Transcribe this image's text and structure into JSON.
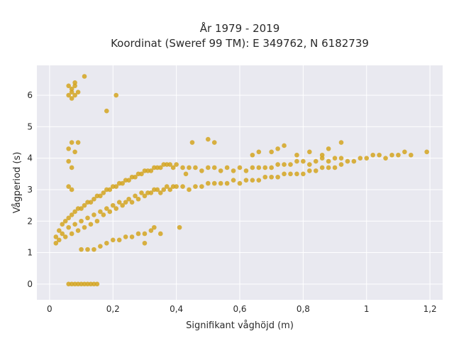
{
  "chart_data": {
    "type": "scatter",
    "title_lines": [
      "År 1979 - 2019",
      "Koordinat (Sweref 99 TM): E 349762, N 6182739"
    ],
    "xlabel": "Signifikant våghöjd (m)",
    "ylabel": "Vågperiod (s)",
    "xlim": [
      -0.04,
      1.24
    ],
    "ylim": [
      -0.5,
      6.95
    ],
    "x_ticks": [
      0,
      0.2,
      0.4,
      0.6,
      0.8,
      1,
      1.2
    ],
    "x_tick_labels": [
      "0",
      "0,2",
      "0,4",
      "0,6",
      "0,8",
      "1",
      "1,2"
    ],
    "y_ticks": [
      0,
      1,
      2,
      3,
      4,
      5,
      6
    ],
    "y_tick_labels": [
      "0",
      "1",
      "2",
      "3",
      "4",
      "5",
      "6"
    ],
    "grid": true,
    "colors": {
      "marker": "#d4a520",
      "plot_bg": "#e9e9f0",
      "grid": "#ffffff"
    },
    "series": [
      {
        "values_note_free": true,
        "points": [
          [
            0.02,
            1.3
          ],
          [
            0.02,
            1.5
          ],
          [
            0.03,
            1.7
          ],
          [
            0.03,
            1.4
          ],
          [
            0.04,
            1.6
          ],
          [
            0.04,
            1.9
          ],
          [
            0.05,
            2.0
          ],
          [
            0.05,
            1.5
          ],
          [
            0.06,
            2.1
          ],
          [
            0.06,
            1.8
          ],
          [
            0.07,
            2.2
          ],
          [
            0.07,
            1.6
          ],
          [
            0.08,
            2.3
          ],
          [
            0.08,
            1.9
          ],
          [
            0.09,
            2.4
          ],
          [
            0.09,
            1.7
          ],
          [
            0.1,
            2.4
          ],
          [
            0.1,
            2.0
          ],
          [
            0.11,
            2.5
          ],
          [
            0.11,
            1.8
          ],
          [
            0.12,
            2.6
          ],
          [
            0.12,
            2.1
          ],
          [
            0.13,
            2.6
          ],
          [
            0.13,
            1.9
          ],
          [
            0.14,
            2.7
          ],
          [
            0.14,
            2.2
          ],
          [
            0.15,
            2.8
          ],
          [
            0.15,
            2.0
          ],
          [
            0.16,
            2.8
          ],
          [
            0.16,
            2.3
          ],
          [
            0.17,
            2.9
          ],
          [
            0.17,
            2.2
          ],
          [
            0.18,
            3.0
          ],
          [
            0.18,
            2.4
          ],
          [
            0.19,
            3.0
          ],
          [
            0.19,
            2.3
          ],
          [
            0.2,
            3.1
          ],
          [
            0.2,
            2.5
          ],
          [
            0.21,
            3.1
          ],
          [
            0.21,
            2.4
          ],
          [
            0.22,
            3.2
          ],
          [
            0.22,
            2.6
          ],
          [
            0.23,
            3.2
          ],
          [
            0.23,
            2.5
          ],
          [
            0.24,
            3.3
          ],
          [
            0.24,
            2.6
          ],
          [
            0.25,
            3.3
          ],
          [
            0.25,
            2.7
          ],
          [
            0.26,
            3.4
          ],
          [
            0.26,
            2.6
          ],
          [
            0.27,
            3.4
          ],
          [
            0.27,
            2.8
          ],
          [
            0.28,
            3.5
          ],
          [
            0.28,
            2.7
          ],
          [
            0.29,
            3.5
          ],
          [
            0.29,
            2.9
          ],
          [
            0.3,
            3.6
          ],
          [
            0.3,
            2.8
          ],
          [
            0.31,
            3.6
          ],
          [
            0.31,
            2.9
          ],
          [
            0.32,
            3.6
          ],
          [
            0.32,
            2.9
          ],
          [
            0.33,
            3.7
          ],
          [
            0.33,
            3.0
          ],
          [
            0.34,
            3.7
          ],
          [
            0.34,
            3.0
          ],
          [
            0.35,
            3.7
          ],
          [
            0.35,
            2.9
          ],
          [
            0.36,
            3.8
          ],
          [
            0.36,
            3.0
          ],
          [
            0.37,
            3.8
          ],
          [
            0.37,
            3.1
          ],
          [
            0.38,
            3.8
          ],
          [
            0.38,
            3.0
          ],
          [
            0.39,
            3.7
          ],
          [
            0.39,
            3.1
          ],
          [
            0.4,
            3.8
          ],
          [
            0.4,
            3.1
          ],
          [
            0.42,
            3.7
          ],
          [
            0.42,
            3.1
          ],
          [
            0.44,
            3.7
          ],
          [
            0.44,
            3.0
          ],
          [
            0.46,
            3.7
          ],
          [
            0.46,
            3.1
          ],
          [
            0.48,
            3.6
          ],
          [
            0.48,
            3.1
          ],
          [
            0.5,
            3.7
          ],
          [
            0.5,
            3.2
          ],
          [
            0.52,
            3.7
          ],
          [
            0.52,
            3.2
          ],
          [
            0.54,
            3.6
          ],
          [
            0.54,
            3.2
          ],
          [
            0.56,
            3.7
          ],
          [
            0.56,
            3.2
          ],
          [
            0.58,
            3.6
          ],
          [
            0.58,
            3.3
          ],
          [
            0.6,
            3.7
          ],
          [
            0.6,
            3.2
          ],
          [
            0.62,
            3.6
          ],
          [
            0.62,
            3.3
          ],
          [
            0.64,
            3.7
          ],
          [
            0.64,
            3.3
          ],
          [
            0.66,
            3.7
          ],
          [
            0.66,
            3.3
          ],
          [
            0.68,
            3.7
          ],
          [
            0.68,
            3.4
          ],
          [
            0.7,
            3.7
          ],
          [
            0.7,
            3.4
          ],
          [
            0.72,
            3.8
          ],
          [
            0.72,
            3.4
          ],
          [
            0.74,
            3.8
          ],
          [
            0.74,
            3.5
          ],
          [
            0.76,
            3.8
          ],
          [
            0.76,
            3.5
          ],
          [
            0.78,
            3.9
          ],
          [
            0.78,
            3.5
          ],
          [
            0.8,
            3.9
          ],
          [
            0.8,
            3.5
          ],
          [
            0.82,
            3.8
          ],
          [
            0.82,
            3.6
          ],
          [
            0.84,
            3.9
          ],
          [
            0.84,
            3.6
          ],
          [
            0.86,
            4.0
          ],
          [
            0.86,
            3.7
          ],
          [
            0.88,
            3.9
          ],
          [
            0.88,
            3.7
          ],
          [
            0.9,
            4.0
          ],
          [
            0.9,
            3.7
          ],
          [
            0.92,
            4.0
          ],
          [
            0.92,
            3.8
          ],
          [
            0.94,
            3.9
          ],
          [
            0.96,
            3.9
          ],
          [
            0.98,
            4.0
          ],
          [
            1.0,
            4.0
          ],
          [
            1.02,
            4.1
          ],
          [
            1.04,
            4.1
          ],
          [
            1.06,
            4.0
          ],
          [
            1.08,
            4.1
          ],
          [
            1.1,
            4.1
          ],
          [
            1.12,
            4.2
          ],
          [
            1.14,
            4.1
          ],
          [
            1.19,
            4.2
          ],
          [
            0.06,
            6.0
          ],
          [
            0.06,
            6.3
          ],
          [
            0.07,
            6.1
          ],
          [
            0.07,
            6.2
          ],
          [
            0.08,
            6.0
          ],
          [
            0.08,
            6.3
          ],
          [
            0.08,
            6.4
          ],
          [
            0.09,
            6.1
          ],
          [
            0.07,
            5.9
          ],
          [
            0.11,
            6.6
          ],
          [
            0.21,
            6.0
          ],
          [
            0.18,
            5.5
          ],
          [
            0.07,
            4.5
          ],
          [
            0.09,
            4.5
          ],
          [
            0.06,
            4.3
          ],
          [
            0.06,
            3.9
          ],
          [
            0.07,
            3.7
          ],
          [
            0.08,
            4.2
          ],
          [
            0.06,
            3.1
          ],
          [
            0.07,
            3.0
          ],
          [
            0.06,
            0
          ],
          [
            0.07,
            0
          ],
          [
            0.08,
            0
          ],
          [
            0.09,
            0
          ],
          [
            0.1,
            0
          ],
          [
            0.11,
            0
          ],
          [
            0.12,
            0
          ],
          [
            0.13,
            0
          ],
          [
            0.14,
            0
          ],
          [
            0.15,
            0
          ],
          [
            0.1,
            1.1
          ],
          [
            0.12,
            1.1
          ],
          [
            0.14,
            1.1
          ],
          [
            0.16,
            1.2
          ],
          [
            0.18,
            1.3
          ],
          [
            0.2,
            1.4
          ],
          [
            0.22,
            1.4
          ],
          [
            0.24,
            1.5
          ],
          [
            0.26,
            1.5
          ],
          [
            0.28,
            1.6
          ],
          [
            0.3,
            1.6
          ],
          [
            0.32,
            1.7
          ],
          [
            0.3,
            1.3
          ],
          [
            0.35,
            1.6
          ],
          [
            0.41,
            1.8
          ],
          [
            0.33,
            1.8
          ],
          [
            0.45,
            4.5
          ],
          [
            0.5,
            4.6
          ],
          [
            0.52,
            4.5
          ],
          [
            0.43,
            3.5
          ],
          [
            0.64,
            4.1
          ],
          [
            0.66,
            4.2
          ],
          [
            0.7,
            4.2
          ],
          [
            0.72,
            4.3
          ],
          [
            0.74,
            4.4
          ],
          [
            0.78,
            4.1
          ],
          [
            0.82,
            4.2
          ],
          [
            0.86,
            4.1
          ],
          [
            0.88,
            4.3
          ],
          [
            0.92,
            4.5
          ]
        ]
      }
    ]
  }
}
